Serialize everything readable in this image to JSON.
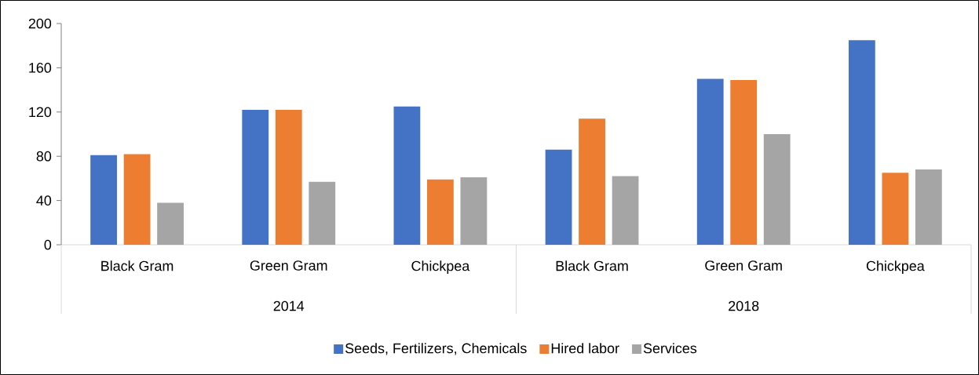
{
  "chart_data": {
    "type": "bar",
    "categories": [
      "Black Gram",
      "Green Gram",
      "Chickpea",
      "Black Gram",
      "Green Gram",
      "Chickpea"
    ],
    "series": [
      {
        "name": "Seeds, Fertilizers, Chemicals",
        "color": "#4472c4",
        "values": [
          81,
          122,
          125,
          86,
          150,
          185
        ]
      },
      {
        "name": "Hired labor",
        "color": "#ed7d31",
        "values": [
          82,
          122,
          59,
          114,
          149,
          65
        ]
      },
      {
        "name": "Services",
        "color": "#a5a5a5",
        "values": [
          38,
          57,
          61,
          62,
          100,
          68
        ]
      }
    ],
    "annotations": [
      "2014",
      "2018"
    ],
    "ylim": [
      0,
      200
    ],
    "yticks": [
      0,
      40,
      80,
      120,
      160,
      200
    ],
    "grid": false,
    "legend": "bottom"
  }
}
